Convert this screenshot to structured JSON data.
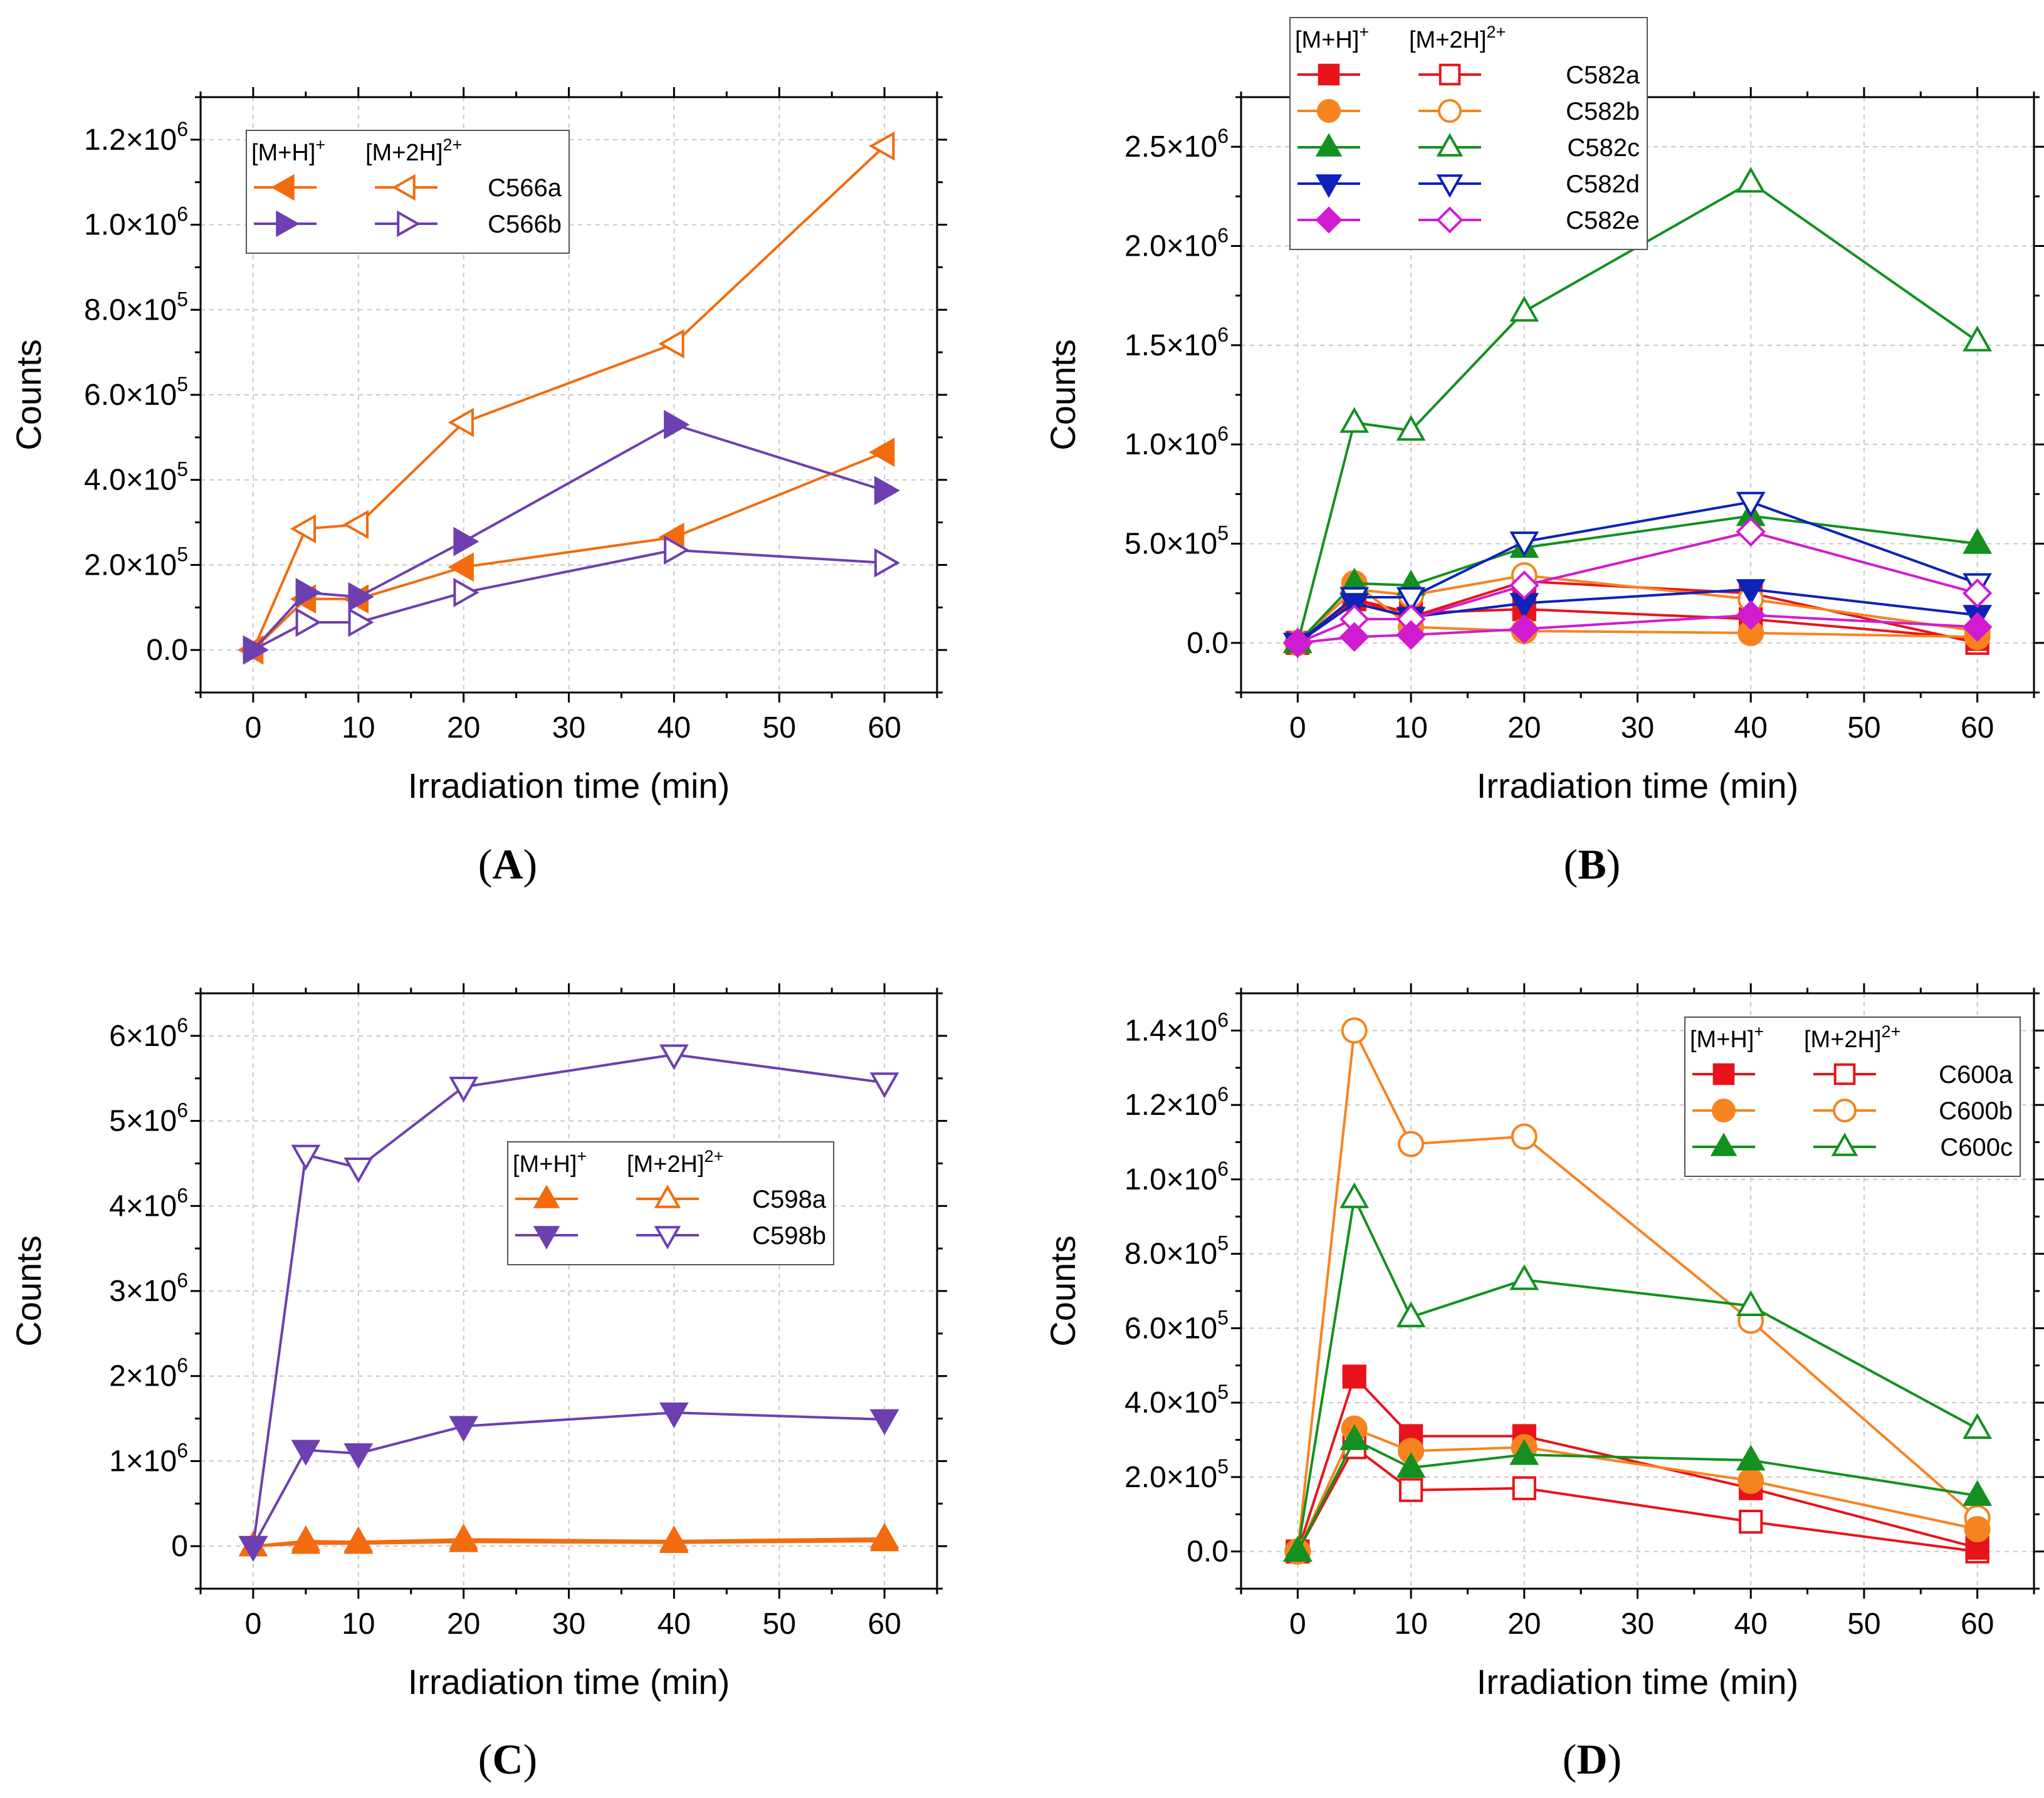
{
  "chart_data": [
    {
      "id": "A",
      "type": "line",
      "panel_label": "A",
      "xlabel": "Irradiation time (min)",
      "ylabel": "Counts",
      "xlim": [
        -5,
        65
      ],
      "ylim": [
        -100000,
        1300000
      ],
      "xticks": [
        0,
        10,
        20,
        30,
        40,
        50,
        60
      ],
      "x_tick_labels": [
        "0",
        "10",
        "20",
        "30",
        "40",
        "50",
        "60"
      ],
      "yticks": [
        0,
        200000,
        400000,
        600000,
        800000,
        1000000,
        1200000
      ],
      "y_tick_mantissa": [
        "0.0",
        "2.0×10",
        "4.0×10",
        "6.0×10",
        "8.0×10",
        "1.0×10",
        "1.2×10"
      ],
      "y_tick_exponent": [
        "",
        "5",
        "5",
        "5",
        "5",
        "6",
        "6"
      ],
      "grid": true,
      "legend": {
        "position": "top-left",
        "header_filled": "[M+H]",
        "header_filled_sup": "+",
        "header_open": "[M+2H]",
        "header_open_sup": "2+"
      },
      "x": [
        0,
        5,
        10,
        20,
        40,
        60
      ],
      "series": [
        {
          "name": "C566a",
          "color": "#f26b0f",
          "marker": "triangle-left",
          "values_filled": [
            0,
            120000,
            120000,
            195000,
            265000,
            465000
          ],
          "values_open": [
            0,
            285000,
            295000,
            535000,
            720000,
            1185000
          ]
        },
        {
          "name": "C566b",
          "color": "#6d3fb0",
          "marker": "triangle-right",
          "values_filled": [
            0,
            135000,
            125000,
            255000,
            530000,
            375000
          ],
          "values_open": [
            0,
            65000,
            65000,
            135000,
            235000,
            205000
          ]
        }
      ]
    },
    {
      "id": "B",
      "type": "line",
      "panel_label": "B",
      "xlabel": "Irradiation time (min)",
      "ylabel": "Counts",
      "xlim": [
        -5,
        65
      ],
      "ylim": [
        -250000,
        2750000
      ],
      "xticks": [
        0,
        10,
        20,
        30,
        40,
        50,
        60
      ],
      "x_tick_labels": [
        "0",
        "10",
        "20",
        "30",
        "40",
        "50",
        "60"
      ],
      "yticks": [
        0,
        500000,
        1000000,
        1500000,
        2000000,
        2500000
      ],
      "y_tick_mantissa": [
        "0.0",
        "5.0×10",
        "1.0×10",
        "1.5×10",
        "2.0×10",
        "2.5×10"
      ],
      "y_tick_exponent": [
        "",
        "5",
        "6",
        "6",
        "6",
        "6"
      ],
      "grid": true,
      "legend": {
        "position": "top-left",
        "header_filled": "[M+H]",
        "header_filled_sup": "+",
        "header_open": "[M+2H]",
        "header_open_sup": "2+"
      },
      "x": [
        0,
        5,
        10,
        20,
        40,
        60
      ],
      "series": [
        {
          "name": "C582a",
          "color": "#e8131b",
          "marker": "square",
          "values_filled": [
            0,
            220000,
            150000,
            170000,
            120000,
            20000
          ],
          "values_open": [
            0,
            220000,
            130000,
            310000,
            250000,
            0
          ]
        },
        {
          "name": "C582b",
          "color": "#f7831f",
          "marker": "circle",
          "values_filled": [
            0,
            300000,
            80000,
            60000,
            50000,
            30000
          ],
          "values_open": [
            0,
            270000,
            240000,
            340000,
            220000,
            60000
          ]
        },
        {
          "name": "C582c",
          "color": "#13901f",
          "marker": "triangle-up",
          "values_filled": [
            0,
            300000,
            290000,
            480000,
            640000,
            500000
          ],
          "values_open": [
            0,
            1110000,
            1070000,
            1670000,
            2320000,
            1520000
          ]
        },
        {
          "name": "C582d",
          "color": "#0d22b8",
          "marker": "triangle-down",
          "values_filled": [
            0,
            200000,
            130000,
            200000,
            270000,
            140000
          ],
          "values_open": [
            0,
            230000,
            230000,
            510000,
            710000,
            300000
          ]
        },
        {
          "name": "C582e",
          "color": "#d11bd1",
          "marker": "diamond",
          "values_filled": [
            0,
            30000,
            40000,
            70000,
            140000,
            80000
          ],
          "values_open": [
            0,
            120000,
            120000,
            290000,
            560000,
            250000
          ]
        }
      ]
    },
    {
      "id": "C",
      "type": "line",
      "panel_label": "C",
      "xlabel": "Irradiation time (min)",
      "ylabel": "Counts",
      "xlim": [
        -5,
        65
      ],
      "ylim": [
        -500000,
        6500000
      ],
      "xticks": [
        0,
        10,
        20,
        30,
        40,
        50,
        60
      ],
      "x_tick_labels": [
        "0",
        "10",
        "20",
        "30",
        "40",
        "50",
        "60"
      ],
      "yticks": [
        0,
        1000000,
        2000000,
        3000000,
        4000000,
        5000000,
        6000000
      ],
      "y_tick_mantissa": [
        "0",
        "1×10",
        "2×10",
        "3×10",
        "4×10",
        "5×10",
        "6×10"
      ],
      "y_tick_exponent": [
        "",
        "6",
        "6",
        "6",
        "6",
        "6",
        "6"
      ],
      "grid": true,
      "legend": {
        "position": "center-right",
        "header_filled": "[M+H]",
        "header_filled_sup": "+",
        "header_open": "[M+2H]",
        "header_open_sup": "2+"
      },
      "x": [
        0,
        5,
        10,
        20,
        40,
        60
      ],
      "series": [
        {
          "name": "C598a",
          "color": "#f26b0f",
          "marker": "triangle-up",
          "values_filled": [
            0,
            30000,
            30000,
            50000,
            40000,
            60000
          ],
          "values_open": [
            0,
            60000,
            50000,
            80000,
            60000,
            90000
          ]
        },
        {
          "name": "C598b",
          "color": "#6d3fb0",
          "marker": "triangle-down",
          "values_filled": [
            0,
            1130000,
            1090000,
            1410000,
            1570000,
            1490000
          ],
          "values_open": [
            0,
            4600000,
            4450000,
            5400000,
            5780000,
            5450000
          ]
        }
      ]
    },
    {
      "id": "D",
      "type": "line",
      "panel_label": "D",
      "xlabel": "Irradiation time (min)",
      "ylabel": "Counts",
      "xlim": [
        -5,
        65
      ],
      "ylim": [
        -100000,
        1500000
      ],
      "xticks": [
        0,
        10,
        20,
        30,
        40,
        50,
        60
      ],
      "x_tick_labels": [
        "0",
        "10",
        "20",
        "30",
        "40",
        "50",
        "60"
      ],
      "yticks": [
        0,
        200000,
        400000,
        600000,
        800000,
        1000000,
        1200000,
        1400000
      ],
      "y_tick_mantissa": [
        "0.0",
        "2.0×10",
        "4.0×10",
        "6.0×10",
        "8.0×10",
        "1.0×10",
        "1.2×10",
        "1.4×10"
      ],
      "y_tick_exponent": [
        "",
        "5",
        "5",
        "5",
        "5",
        "6",
        "6",
        "6"
      ],
      "grid": true,
      "legend": {
        "position": "top-right",
        "header_filled": "[M+H]",
        "header_filled_sup": "+",
        "header_open": "[M+2H]",
        "header_open_sup": "2+"
      },
      "x": [
        0,
        5,
        10,
        20,
        40,
        60
      ],
      "series": [
        {
          "name": "C600a",
          "color": "#e8131b",
          "marker": "square",
          "values_filled": [
            0,
            470000,
            310000,
            310000,
            170000,
            10000
          ],
          "values_open": [
            0,
            280000,
            165000,
            170000,
            80000,
            0
          ]
        },
        {
          "name": "C600b",
          "color": "#f7831f",
          "marker": "circle",
          "values_filled": [
            0,
            330000,
            270000,
            280000,
            190000,
            60000
          ],
          "values_open": [
            0,
            1400000,
            1095000,
            1115000,
            620000,
            90000
          ]
        },
        {
          "name": "C600c",
          "color": "#13901f",
          "marker": "triangle-up",
          "values_filled": [
            0,
            300000,
            225000,
            260000,
            245000,
            150000
          ],
          "values_open": [
            0,
            950000,
            630000,
            730000,
            660000,
            330000
          ]
        }
      ]
    }
  ]
}
